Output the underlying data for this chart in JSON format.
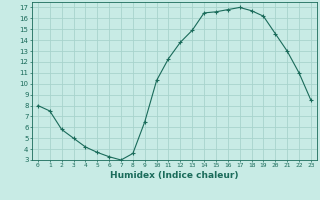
{
  "x": [
    0,
    1,
    2,
    3,
    4,
    5,
    6,
    7,
    8,
    9,
    10,
    11,
    12,
    13,
    14,
    15,
    16,
    17,
    18,
    19,
    20,
    21,
    22,
    23
  ],
  "y": [
    8.0,
    7.5,
    5.8,
    5.0,
    4.2,
    3.7,
    3.3,
    3.0,
    3.6,
    6.5,
    10.3,
    12.3,
    13.8,
    14.9,
    16.5,
    16.6,
    16.8,
    17.0,
    16.7,
    16.2,
    14.6,
    13.0,
    11.0,
    8.5
  ],
  "line_color": "#1a6b5a",
  "marker": "+",
  "marker_size": 3,
  "bg_color": "#c8ebe5",
  "grid_color": "#a8d4cc",
  "xlabel": "Humidex (Indice chaleur)",
  "xlim": [
    -0.5,
    23.5
  ],
  "ylim": [
    3,
    17.5
  ],
  "yticks": [
    3,
    4,
    5,
    6,
    7,
    8,
    9,
    10,
    11,
    12,
    13,
    14,
    15,
    16,
    17
  ]
}
